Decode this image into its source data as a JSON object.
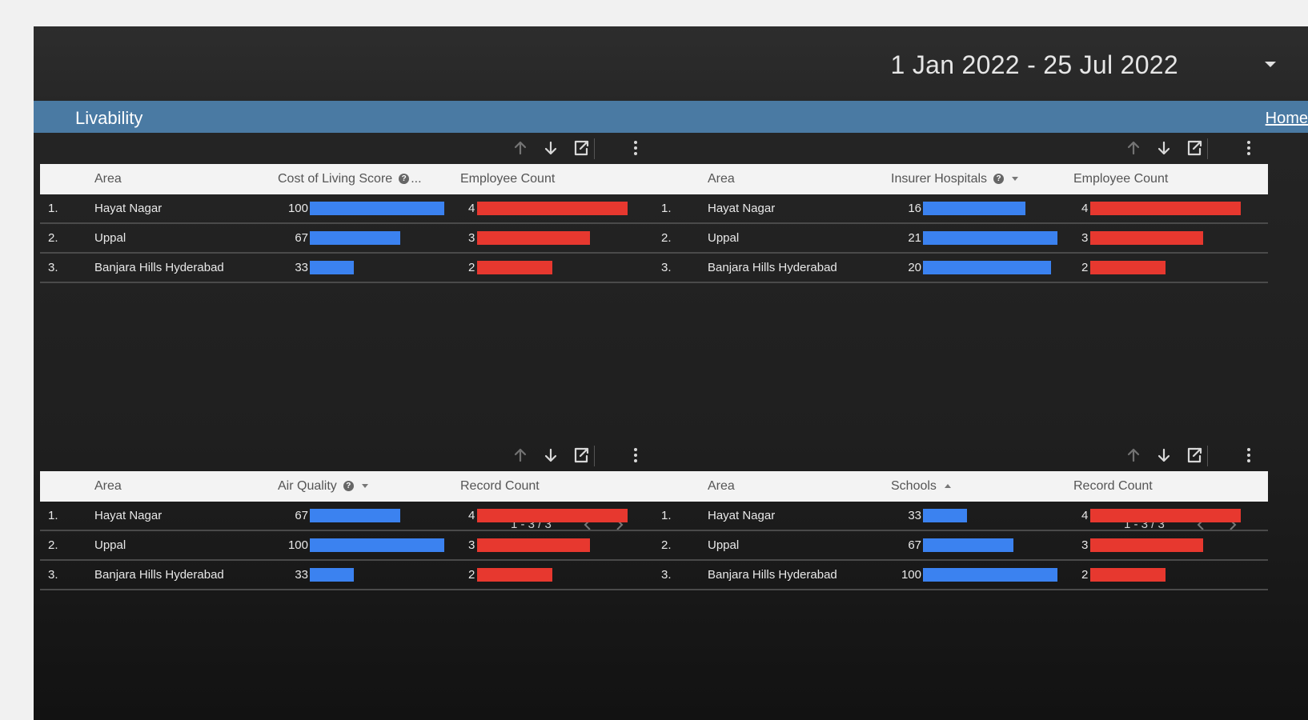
{
  "date_range": {
    "label": "1 Jan 2022 - 25 Jul 2022"
  },
  "banner": {
    "title": "Livability",
    "home_link": "Home"
  },
  "tables": [
    {
      "columns": [
        "Area",
        "Cost of Living Score",
        "Employee Count"
      ],
      "metric_has_info": true,
      "metric_suffix": "...",
      "sort": "none",
      "rows": [
        {
          "rank": "1.",
          "area": "Hayat Nagar",
          "metric": 100,
          "count": 4
        },
        {
          "rank": "2.",
          "area": "Uppal",
          "metric": 67,
          "count": 3
        },
        {
          "rank": "3.",
          "area": "Banjara Hills Hyderabad",
          "metric": 33,
          "count": 2
        }
      ],
      "metric_max": 100,
      "count_max": 4,
      "pager": "1 - 3 / 3"
    },
    {
      "columns": [
        "Area",
        "Insurer Hospitals",
        "Employee Count"
      ],
      "metric_has_info": true,
      "metric_suffix": "",
      "sort": "down",
      "rows": [
        {
          "rank": "1.",
          "area": "Hayat Nagar",
          "metric": 16,
          "count": 4
        },
        {
          "rank": "2.",
          "area": "Uppal",
          "metric": 21,
          "count": 3
        },
        {
          "rank": "3.",
          "area": "Banjara Hills Hyderabad",
          "metric": 20,
          "count": 2
        }
      ],
      "metric_max": 21,
      "count_max": 4,
      "pager": "1 - 3 / 3"
    },
    {
      "columns": [
        "Area",
        "Air Quality",
        "Record Count"
      ],
      "metric_has_info": true,
      "metric_suffix": "",
      "sort": "down",
      "rows": [
        {
          "rank": "1.",
          "area": "Hayat Nagar",
          "metric": 67,
          "count": 4
        },
        {
          "rank": "2.",
          "area": "Uppal",
          "metric": 100,
          "count": 3
        },
        {
          "rank": "3.",
          "area": "Banjara Hills Hyderabad",
          "metric": 33,
          "count": 2
        }
      ],
      "metric_max": 100,
      "count_max": 4,
      "pager": ""
    },
    {
      "columns": [
        "Area",
        "Schools",
        "Record Count"
      ],
      "metric_has_info": false,
      "metric_suffix": "",
      "sort": "up",
      "rows": [
        {
          "rank": "1.",
          "area": "Hayat Nagar",
          "metric": 33,
          "count": 4
        },
        {
          "rank": "2.",
          "area": "Uppal",
          "metric": 67,
          "count": 3
        },
        {
          "rank": "3.",
          "area": "Banjara Hills Hyderabad",
          "metric": 100,
          "count": 2
        }
      ],
      "metric_max": 100,
      "count_max": 4,
      "pager": ""
    }
  ],
  "colors": {
    "metric_bar": "#3b82f0",
    "count_bar": "#e7382f",
    "banner": "#4a7aa3"
  },
  "icons": {
    "toolbar": [
      "arrow-up-icon",
      "arrow-down-icon",
      "export-icon",
      "more-vert-icon"
    ],
    "pager": [
      "chevron-left-icon",
      "chevron-right-icon"
    ]
  }
}
